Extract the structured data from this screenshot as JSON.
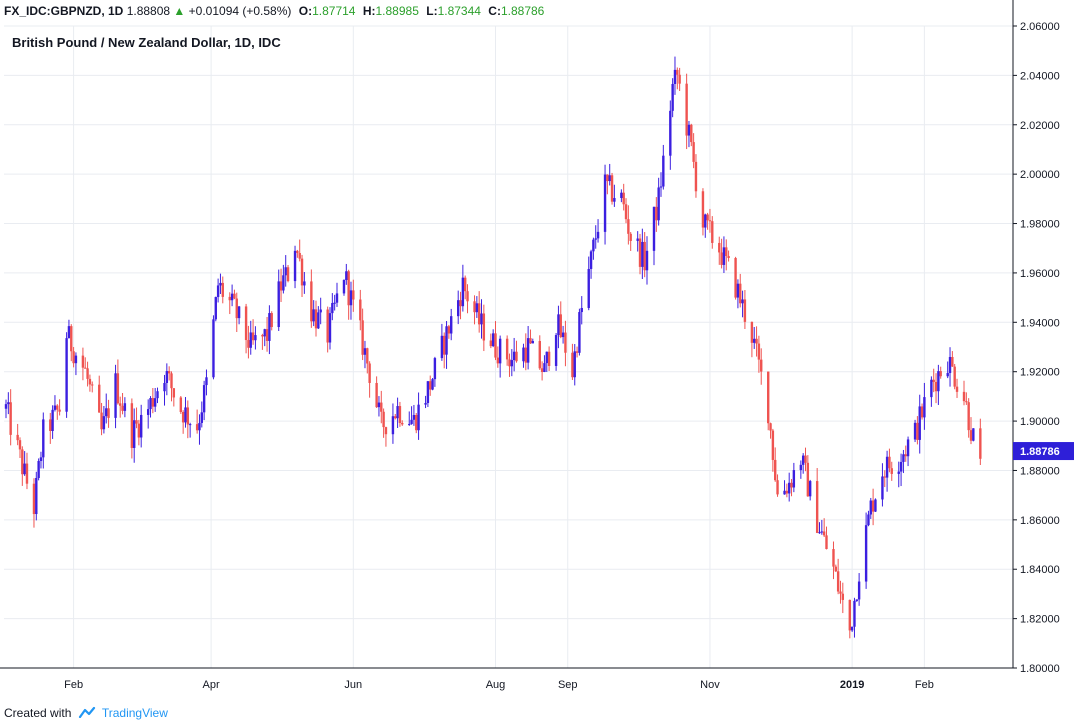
{
  "header": {
    "symbol": "FX_IDC:GBPNZD, 1D",
    "last": "1.88808",
    "change": "+0.01094 (+0.58%)",
    "change_arrow": "▲",
    "o_label": "O:",
    "o_value": "1.87714",
    "h_label": "H:",
    "h_value": "1.88985",
    "l_label": "L:",
    "l_value": "1.87344",
    "c_label": "C:",
    "c_value": "1.88786"
  },
  "footer": {
    "created_with": "Created with",
    "brand": "TradingView",
    "brand_icon": "tradingview-cloud-icon"
  },
  "colors": {
    "up": "#3b1fe0",
    "down": "#ef5350",
    "grid": "#e9ecf1",
    "axis": "#131722",
    "last_price_bg": "#2e1fd8",
    "value_text": "#2ca02c"
  },
  "chart_data": {
    "type": "candlestick",
    "title": "British Pound / New Zealand Dollar, 1D, IDC",
    "ylim": [
      1.8,
      2.06
    ],
    "y_ticks": [
      "1.80000",
      "1.82000",
      "1.84000",
      "1.86000",
      "1.88000",
      "1.90000",
      "1.92000",
      "1.94000",
      "1.96000",
      "1.98000",
      "2.00000",
      "2.02000",
      "2.04000",
      "2.06000"
    ],
    "x_ticks": [
      {
        "date": "2018-02-01",
        "label": "Feb"
      },
      {
        "date": "2018-04-01",
        "label": "Apr"
      },
      {
        "date": "2018-06-01",
        "label": "Jun"
      },
      {
        "date": "2018-08-01",
        "label": "Aug"
      },
      {
        "date": "2018-09-01",
        "label": "Sep"
      },
      {
        "date": "2018-11-01",
        "label": "Nov"
      },
      {
        "date": "2019-01-01",
        "label": "2019"
      },
      {
        "date": "2019-02-01",
        "label": "Feb"
      }
    ],
    "last_price": "1.88786",
    "grid": true,
    "x_range": [
      "2018-01-03",
      "2019-02-24"
    ],
    "anchors": [
      [
        "2018-01-03",
        1.905
      ],
      [
        "2018-01-09",
        1.885
      ],
      [
        "2018-01-15",
        1.865
      ],
      [
        "2018-01-19",
        1.895
      ],
      [
        "2018-01-26",
        1.905
      ],
      [
        "2018-01-29",
        1.935
      ],
      [
        "2018-02-06",
        1.92
      ],
      [
        "2018-02-13",
        1.895
      ],
      [
        "2018-02-19",
        1.915
      ],
      [
        "2018-02-26",
        1.895
      ],
      [
        "2018-03-05",
        1.905
      ],
      [
        "2018-03-12",
        1.92
      ],
      [
        "2018-03-19",
        1.905
      ],
      [
        "2018-03-26",
        1.898
      ],
      [
        "2018-03-30",
        1.915
      ],
      [
        "2018-04-04",
        1.955
      ],
      [
        "2018-04-11",
        1.945
      ],
      [
        "2018-04-18",
        1.93
      ],
      [
        "2018-04-25",
        1.935
      ],
      [
        "2018-05-01",
        1.955
      ],
      [
        "2018-05-04",
        1.96
      ],
      [
        "2018-05-07",
        1.972
      ],
      [
        "2018-05-14",
        1.945
      ],
      [
        "2018-05-21",
        1.935
      ],
      [
        "2018-05-28",
        1.96
      ],
      [
        "2018-06-04",
        1.935
      ],
      [
        "2018-06-08",
        1.92
      ],
      [
        "2018-06-13",
        1.898
      ],
      [
        "2018-06-20",
        1.905
      ],
      [
        "2018-06-27",
        1.9
      ],
      [
        "2018-07-04",
        1.915
      ],
      [
        "2018-07-11",
        1.935
      ],
      [
        "2018-07-18",
        1.955
      ],
      [
        "2018-07-25",
        1.94
      ],
      [
        "2018-08-01",
        1.93
      ],
      [
        "2018-08-08",
        1.925
      ],
      [
        "2018-08-15",
        1.93
      ],
      [
        "2018-08-22",
        1.92
      ],
      [
        "2018-08-27",
        1.94
      ],
      [
        "2018-08-31",
        1.93
      ],
      [
        "2018-09-03",
        1.92
      ],
      [
        "2018-09-06",
        1.94
      ],
      [
        "2018-09-10",
        1.96
      ],
      [
        "2018-09-17",
        1.995
      ],
      [
        "2018-09-24",
        1.99
      ],
      [
        "2018-09-28",
        1.975
      ],
      [
        "2018-10-04",
        1.965
      ],
      [
        "2018-10-10",
        1.99
      ],
      [
        "2018-10-16",
        2.035
      ],
      [
        "2018-10-18",
        2.04
      ],
      [
        "2018-10-24",
        2.01
      ],
      [
        "2018-10-29",
        1.98
      ],
      [
        "2018-11-05",
        1.97
      ],
      [
        "2018-11-12",
        1.955
      ],
      [
        "2018-11-19",
        1.935
      ],
      [
        "2018-11-26",
        1.905
      ],
      [
        "2018-11-30",
        1.87
      ],
      [
        "2018-12-05",
        1.875
      ],
      [
        "2018-12-10",
        1.885
      ],
      [
        "2018-12-17",
        1.86
      ],
      [
        "2018-12-24",
        1.84
      ],
      [
        "2018-12-31",
        1.815
      ],
      [
        "2019-01-04",
        1.84
      ],
      [
        "2019-01-09",
        1.865
      ],
      [
        "2019-01-14",
        1.88
      ],
      [
        "2019-01-21",
        1.885
      ],
      [
        "2019-01-28",
        1.895
      ],
      [
        "2019-02-04",
        1.915
      ],
      [
        "2019-02-11",
        1.925
      ],
      [
        "2019-02-18",
        1.91
      ],
      [
        "2019-02-25",
        1.88
      ]
    ]
  }
}
